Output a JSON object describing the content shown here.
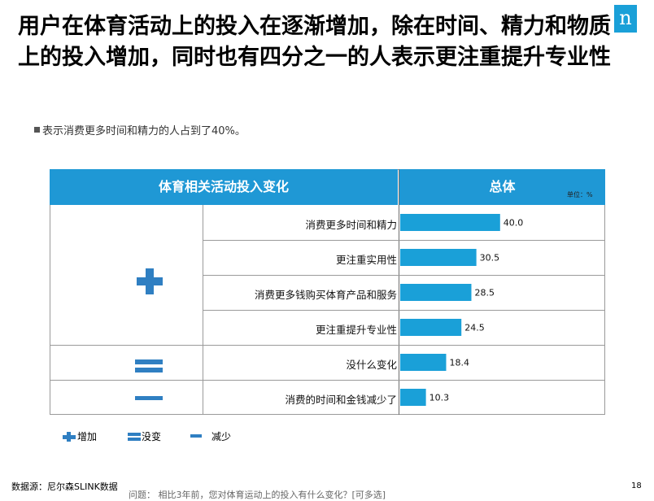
{
  "title": "用户在体育活动上的投入在逐渐增加，除在时间、精力和物质上的投入增加，同时也有四分之一的人表示更注重提升专业性",
  "logo": "n",
  "subtitle": "表示消费更多时间和精力的人占到了40%。",
  "table": {
    "col1_header": "体育相关活动投入变化",
    "col2_header": "总体",
    "unit": "单位：%"
  },
  "legend": {
    "increase": "增加",
    "no_change": "没变",
    "decrease": "减少"
  },
  "colors": {
    "bar": "#1aa0d8",
    "header": "#1f98d5",
    "icon": "#2f7fc2"
  },
  "chart_data": {
    "type": "bar",
    "orientation": "horizontal",
    "categories": [
      "消费更多时间和精力",
      "更注重实用性",
      "消费更多钱购买体育产品和服务",
      "更注重提升专业性",
      "没什么变化",
      "消费的时间和金钱减少了"
    ],
    "values": [
      40.0,
      30.5,
      28.5,
      24.5,
      18.4,
      10.3
    ],
    "value_labels": [
      "40.0",
      "30.5",
      "28.5",
      "24.5",
      "18.4",
      "10.3"
    ],
    "groups": [
      "增加",
      "增加",
      "增加",
      "增加",
      "没变",
      "减少"
    ],
    "xlim": [
      0,
      100
    ]
  },
  "footer": {
    "source": "数据源：尼尔森SLINK数据",
    "question": "问题： 相比3年前，您对体育运动上的投入有什么变化？[可多选]",
    "page": "18"
  }
}
